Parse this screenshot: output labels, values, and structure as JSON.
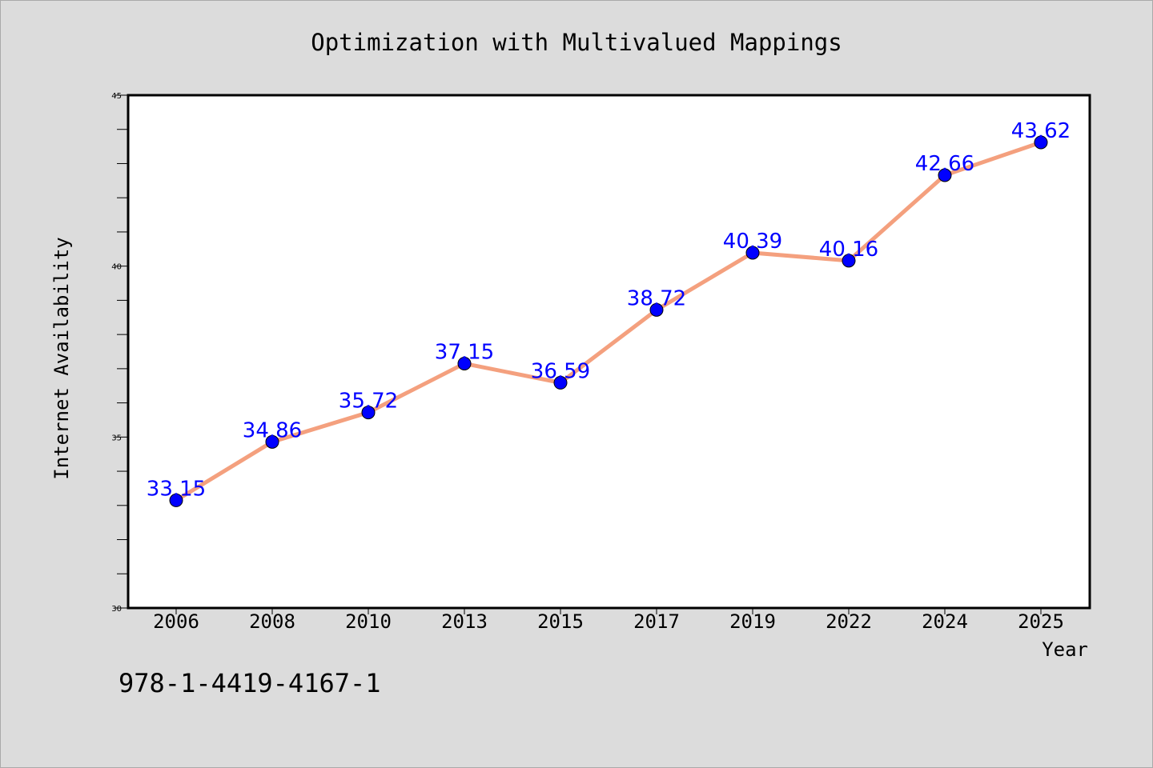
{
  "chart_data": {
    "type": "line",
    "title": "Optimization with Multivalued Mappings",
    "xlabel": "Year",
    "ylabel": "Internet Availability",
    "categories": [
      "2006",
      "2008",
      "2010",
      "2013",
      "2015",
      "2017",
      "2019",
      "2022",
      "2024",
      "2025"
    ],
    "series": [
      {
        "values": [
          33.15,
          34.86,
          35.72,
          37.15,
          36.59,
          38.72,
          40.39,
          40.16,
          42.66,
          43.62
        ],
        "line_color": "#f4a07e",
        "marker_color": "#0000ff",
        "label_color": "#0000ff"
      }
    ],
    "ylim": [
      30,
      45
    ],
    "yticks": [
      "30",
      "35",
      "40",
      "45"
    ],
    "grid": false,
    "legend": "none",
    "background_color": "#dcdcdc",
    "plot_background_color": "#ffffff"
  },
  "footer": {
    "isbn": "978-1-4419-4167-1"
  }
}
